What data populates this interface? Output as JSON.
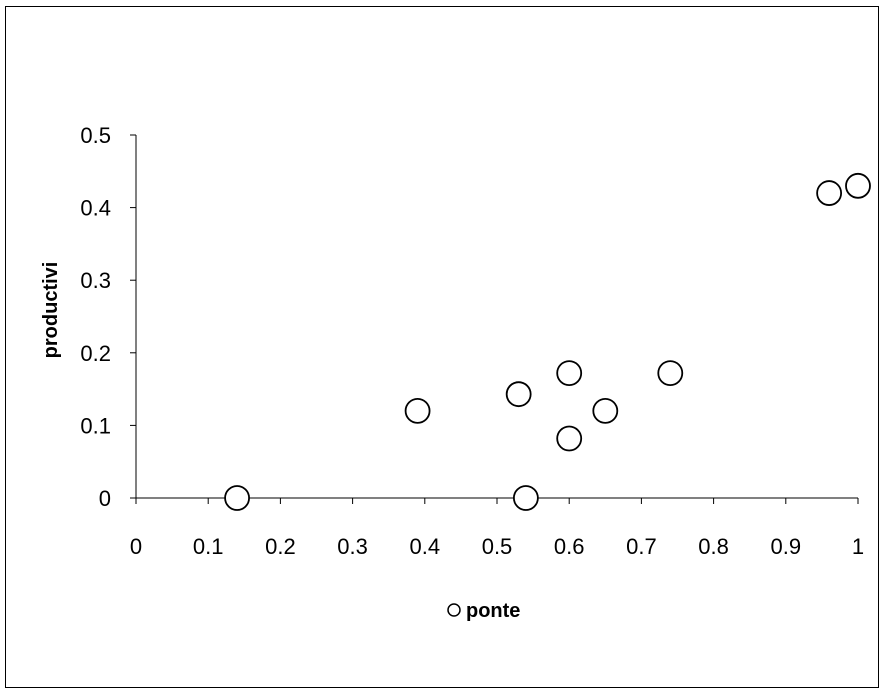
{
  "chart_data": {
    "type": "scatter",
    "xlabel": "ponte",
    "ylabel": "productivi",
    "xlim": [
      0,
      1
    ],
    "ylim": [
      0,
      0.5
    ],
    "xticks": [
      0,
      0.1,
      0.2,
      0.3,
      0.4,
      0.5,
      0.6,
      0.7,
      0.8,
      0.9,
      1
    ],
    "yticks": [
      0,
      0.1,
      0.2,
      0.3,
      0.4,
      0.5
    ],
    "xtick_labels": [
      "0",
      "0.1",
      "0.2",
      "0.3",
      "0.4",
      "0.5",
      "0.6",
      "0.7",
      "0.8",
      "0.9",
      "1"
    ],
    "ytick_labels": [
      "0",
      "0.1",
      "0.2",
      "0.3",
      "0.4",
      "0.5"
    ],
    "grid": false,
    "marker": "open-circle",
    "legend_position": "bottom-center",
    "series": [
      {
        "name": "ponte",
        "points": [
          {
            "x": 0.14,
            "y": 0.0
          },
          {
            "x": 0.39,
            "y": 0.12
          },
          {
            "x": 0.53,
            "y": 0.143
          },
          {
            "x": 0.54,
            "y": 0.0
          },
          {
            "x": 0.6,
            "y": 0.172
          },
          {
            "x": 0.6,
            "y": 0.082
          },
          {
            "x": 0.65,
            "y": 0.12
          },
          {
            "x": 0.74,
            "y": 0.172
          },
          {
            "x": 0.96,
            "y": 0.42
          },
          {
            "x": 1.0,
            "y": 0.43
          }
        ]
      }
    ]
  }
}
